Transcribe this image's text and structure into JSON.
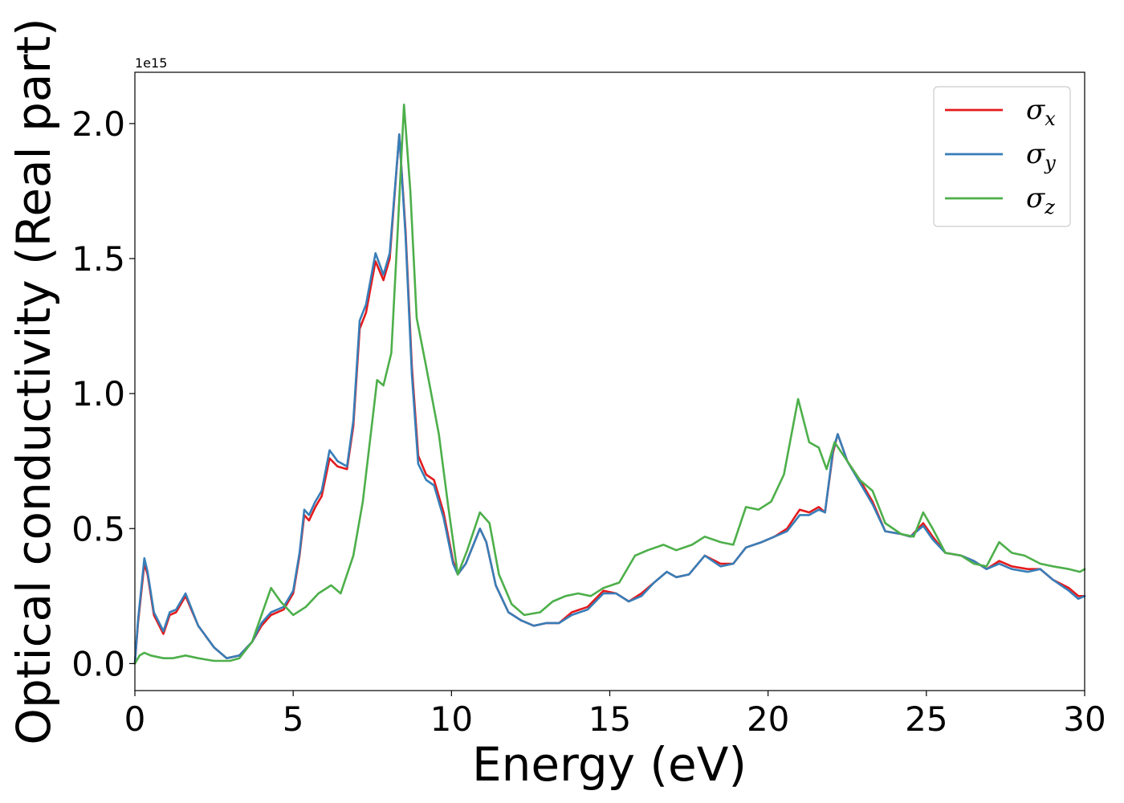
{
  "chart_data": {
    "type": "line",
    "title": "",
    "xlabel": "Energy (eV)",
    "ylabel": "Optical conductivity (Real part)",
    "y_offset_label": "1e15",
    "xlim": [
      0,
      30
    ],
    "ylim": [
      -0.1,
      2.19
    ],
    "x_ticks": [
      0,
      5,
      10,
      15,
      20,
      25,
      30
    ],
    "x_tick_labels": [
      "0",
      "5",
      "10",
      "15",
      "20",
      "25",
      "30"
    ],
    "y_ticks": [
      0.0,
      0.5,
      1.0,
      1.5,
      2.0
    ],
    "y_tick_labels": [
      "0.0",
      "0.5",
      "1.0",
      "1.5",
      "2.0"
    ],
    "grid": false,
    "legend_position": "top-right",
    "series": [
      {
        "name": "σ_x",
        "legend_symbol": "σ",
        "legend_sub": "x",
        "color": "#e41a1c",
        "points": [
          [
            0,
            0
          ],
          [
            0.1,
            0.15
          ],
          [
            0.3,
            0.37
          ],
          [
            0.4,
            0.33
          ],
          [
            0.6,
            0.18
          ],
          [
            0.9,
            0.11
          ],
          [
            1.1,
            0.18
          ],
          [
            1.3,
            0.19
          ],
          [
            1.6,
            0.25
          ],
          [
            2.0,
            0.14
          ],
          [
            2.5,
            0.06
          ],
          [
            2.9,
            0.02
          ],
          [
            3.3,
            0.03
          ],
          [
            3.7,
            0.08
          ],
          [
            4.0,
            0.14
          ],
          [
            4.3,
            0.18
          ],
          [
            4.7,
            0.2
          ],
          [
            5.0,
            0.26
          ],
          [
            5.2,
            0.4
          ],
          [
            5.35,
            0.55
          ],
          [
            5.5,
            0.53
          ],
          [
            5.7,
            0.58
          ],
          [
            5.9,
            0.62
          ],
          [
            6.15,
            0.76
          ],
          [
            6.4,
            0.73
          ],
          [
            6.7,
            0.72
          ],
          [
            6.9,
            0.88
          ],
          [
            7.1,
            1.24
          ],
          [
            7.3,
            1.3
          ],
          [
            7.6,
            1.49
          ],
          [
            7.85,
            1.42
          ],
          [
            8.05,
            1.5
          ],
          [
            8.35,
            1.96
          ],
          [
            8.55,
            1.6
          ],
          [
            8.75,
            1.1
          ],
          [
            8.95,
            0.77
          ],
          [
            9.2,
            0.7
          ],
          [
            9.45,
            0.68
          ],
          [
            9.75,
            0.56
          ],
          [
            10.05,
            0.38
          ],
          [
            10.2,
            0.33
          ],
          [
            10.45,
            0.37
          ],
          [
            10.9,
            0.5
          ],
          [
            11.1,
            0.45
          ],
          [
            11.4,
            0.29
          ],
          [
            11.8,
            0.19
          ],
          [
            12.2,
            0.16
          ],
          [
            12.6,
            0.14
          ],
          [
            13.0,
            0.15
          ],
          [
            13.4,
            0.15
          ],
          [
            13.8,
            0.19
          ],
          [
            14.3,
            0.21
          ],
          [
            14.8,
            0.27
          ],
          [
            15.2,
            0.26
          ],
          [
            15.6,
            0.23
          ],
          [
            16.0,
            0.26
          ],
          [
            16.4,
            0.3
          ],
          [
            16.8,
            0.34
          ],
          [
            17.1,
            0.32
          ],
          [
            17.5,
            0.33
          ],
          [
            18.0,
            0.4
          ],
          [
            18.5,
            0.37
          ],
          [
            18.9,
            0.37
          ],
          [
            19.3,
            0.43
          ],
          [
            19.8,
            0.45
          ],
          [
            20.2,
            0.47
          ],
          [
            20.6,
            0.5
          ],
          [
            21.0,
            0.57
          ],
          [
            21.3,
            0.56
          ],
          [
            21.6,
            0.58
          ],
          [
            21.8,
            0.56
          ],
          [
            22.05,
            0.78
          ],
          [
            22.2,
            0.85
          ],
          [
            22.5,
            0.75
          ],
          [
            22.9,
            0.68
          ],
          [
            23.3,
            0.6
          ],
          [
            23.7,
            0.49
          ],
          [
            24.2,
            0.48
          ],
          [
            24.5,
            0.47
          ],
          [
            24.9,
            0.52
          ],
          [
            25.2,
            0.47
          ],
          [
            25.6,
            0.41
          ],
          [
            26.1,
            0.4
          ],
          [
            26.5,
            0.38
          ],
          [
            26.9,
            0.35
          ],
          [
            27.3,
            0.38
          ],
          [
            27.7,
            0.36
          ],
          [
            28.2,
            0.35
          ],
          [
            28.6,
            0.35
          ],
          [
            29.0,
            0.31
          ],
          [
            29.5,
            0.28
          ],
          [
            29.8,
            0.25
          ],
          [
            30,
            0.25
          ]
        ]
      },
      {
        "name": "σ_y",
        "legend_symbol": "σ",
        "legend_sub": "y",
        "color": "#377eb8",
        "points": [
          [
            0,
            0
          ],
          [
            0.1,
            0.16
          ],
          [
            0.3,
            0.39
          ],
          [
            0.4,
            0.34
          ],
          [
            0.6,
            0.19
          ],
          [
            0.9,
            0.12
          ],
          [
            1.1,
            0.19
          ],
          [
            1.3,
            0.2
          ],
          [
            1.6,
            0.26
          ],
          [
            2.0,
            0.14
          ],
          [
            2.5,
            0.06
          ],
          [
            2.9,
            0.02
          ],
          [
            3.3,
            0.03
          ],
          [
            3.7,
            0.08
          ],
          [
            4.0,
            0.15
          ],
          [
            4.3,
            0.19
          ],
          [
            4.7,
            0.21
          ],
          [
            5.0,
            0.27
          ],
          [
            5.2,
            0.41
          ],
          [
            5.35,
            0.57
          ],
          [
            5.5,
            0.55
          ],
          [
            5.7,
            0.6
          ],
          [
            5.9,
            0.64
          ],
          [
            6.15,
            0.79
          ],
          [
            6.4,
            0.75
          ],
          [
            6.7,
            0.73
          ],
          [
            6.9,
            0.9
          ],
          [
            7.1,
            1.27
          ],
          [
            7.3,
            1.33
          ],
          [
            7.6,
            1.52
          ],
          [
            7.85,
            1.44
          ],
          [
            8.05,
            1.52
          ],
          [
            8.35,
            1.96
          ],
          [
            8.55,
            1.58
          ],
          [
            8.75,
            1.07
          ],
          [
            8.95,
            0.74
          ],
          [
            9.2,
            0.68
          ],
          [
            9.45,
            0.66
          ],
          [
            9.75,
            0.54
          ],
          [
            10.05,
            0.37
          ],
          [
            10.2,
            0.33
          ],
          [
            10.45,
            0.37
          ],
          [
            10.9,
            0.5
          ],
          [
            11.1,
            0.45
          ],
          [
            11.4,
            0.29
          ],
          [
            11.8,
            0.19
          ],
          [
            12.2,
            0.16
          ],
          [
            12.6,
            0.14
          ],
          [
            13.0,
            0.15
          ],
          [
            13.4,
            0.15
          ],
          [
            13.8,
            0.18
          ],
          [
            14.3,
            0.2
          ],
          [
            14.8,
            0.26
          ],
          [
            15.2,
            0.26
          ],
          [
            15.6,
            0.23
          ],
          [
            16.0,
            0.25
          ],
          [
            16.4,
            0.3
          ],
          [
            16.8,
            0.34
          ],
          [
            17.1,
            0.32
          ],
          [
            17.5,
            0.33
          ],
          [
            18.0,
            0.4
          ],
          [
            18.5,
            0.36
          ],
          [
            18.9,
            0.37
          ],
          [
            19.3,
            0.43
          ],
          [
            19.8,
            0.45
          ],
          [
            20.2,
            0.47
          ],
          [
            20.6,
            0.49
          ],
          [
            21.0,
            0.55
          ],
          [
            21.3,
            0.55
          ],
          [
            21.6,
            0.57
          ],
          [
            21.8,
            0.56
          ],
          [
            22.05,
            0.79
          ],
          [
            22.2,
            0.85
          ],
          [
            22.5,
            0.75
          ],
          [
            22.9,
            0.67
          ],
          [
            23.3,
            0.59
          ],
          [
            23.7,
            0.49
          ],
          [
            24.2,
            0.48
          ],
          [
            24.5,
            0.47
          ],
          [
            24.9,
            0.51
          ],
          [
            25.2,
            0.46
          ],
          [
            25.6,
            0.41
          ],
          [
            26.1,
            0.4
          ],
          [
            26.5,
            0.38
          ],
          [
            26.9,
            0.35
          ],
          [
            27.3,
            0.37
          ],
          [
            27.7,
            0.35
          ],
          [
            28.2,
            0.34
          ],
          [
            28.6,
            0.35
          ],
          [
            29.0,
            0.31
          ],
          [
            29.5,
            0.27
          ],
          [
            29.8,
            0.24
          ],
          [
            30,
            0.25
          ]
        ]
      },
      {
        "name": "σ_z",
        "legend_symbol": "σ",
        "legend_sub": "z",
        "color": "#4daf4a",
        "points": [
          [
            0,
            0
          ],
          [
            0.15,
            0.03
          ],
          [
            0.3,
            0.04
          ],
          [
            0.5,
            0.03
          ],
          [
            0.9,
            0.02
          ],
          [
            1.2,
            0.02
          ],
          [
            1.6,
            0.03
          ],
          [
            2.0,
            0.02
          ],
          [
            2.5,
            0.01
          ],
          [
            3.0,
            0.01
          ],
          [
            3.3,
            0.02
          ],
          [
            3.7,
            0.08
          ],
          [
            4.0,
            0.18
          ],
          [
            4.3,
            0.28
          ],
          [
            4.6,
            0.23
          ],
          [
            5.0,
            0.18
          ],
          [
            5.4,
            0.21
          ],
          [
            5.8,
            0.26
          ],
          [
            6.2,
            0.29
          ],
          [
            6.5,
            0.26
          ],
          [
            6.9,
            0.4
          ],
          [
            7.2,
            0.6
          ],
          [
            7.5,
            0.9
          ],
          [
            7.65,
            1.05
          ],
          [
            7.85,
            1.03
          ],
          [
            8.1,
            1.15
          ],
          [
            8.3,
            1.6
          ],
          [
            8.5,
            2.07
          ],
          [
            8.7,
            1.75
          ],
          [
            8.9,
            1.28
          ],
          [
            9.2,
            1.1
          ],
          [
            9.6,
            0.85
          ],
          [
            9.9,
            0.58
          ],
          [
            10.2,
            0.33
          ],
          [
            10.5,
            0.42
          ],
          [
            10.9,
            0.56
          ],
          [
            11.2,
            0.52
          ],
          [
            11.5,
            0.33
          ],
          [
            11.9,
            0.22
          ],
          [
            12.3,
            0.18
          ],
          [
            12.8,
            0.19
          ],
          [
            13.2,
            0.23
          ],
          [
            13.6,
            0.25
          ],
          [
            14.0,
            0.26
          ],
          [
            14.4,
            0.25
          ],
          [
            14.8,
            0.28
          ],
          [
            15.3,
            0.3
          ],
          [
            15.8,
            0.4
          ],
          [
            16.2,
            0.42
          ],
          [
            16.7,
            0.44
          ],
          [
            17.1,
            0.42
          ],
          [
            17.6,
            0.44
          ],
          [
            18.0,
            0.47
          ],
          [
            18.5,
            0.45
          ],
          [
            18.9,
            0.44
          ],
          [
            19.3,
            0.58
          ],
          [
            19.7,
            0.57
          ],
          [
            20.1,
            0.6
          ],
          [
            20.5,
            0.7
          ],
          [
            20.95,
            0.98
          ],
          [
            21.3,
            0.82
          ],
          [
            21.6,
            0.8
          ],
          [
            21.85,
            0.72
          ],
          [
            22.1,
            0.82
          ],
          [
            22.5,
            0.75
          ],
          [
            22.9,
            0.68
          ],
          [
            23.3,
            0.64
          ],
          [
            23.7,
            0.52
          ],
          [
            24.2,
            0.48
          ],
          [
            24.6,
            0.47
          ],
          [
            24.9,
            0.56
          ],
          [
            25.2,
            0.5
          ],
          [
            25.6,
            0.41
          ],
          [
            26.1,
            0.4
          ],
          [
            26.5,
            0.37
          ],
          [
            26.9,
            0.36
          ],
          [
            27.3,
            0.45
          ],
          [
            27.7,
            0.41
          ],
          [
            28.1,
            0.4
          ],
          [
            28.6,
            0.37
          ],
          [
            29.0,
            0.36
          ],
          [
            29.5,
            0.35
          ],
          [
            29.85,
            0.34
          ],
          [
            30,
            0.35
          ]
        ]
      }
    ]
  }
}
